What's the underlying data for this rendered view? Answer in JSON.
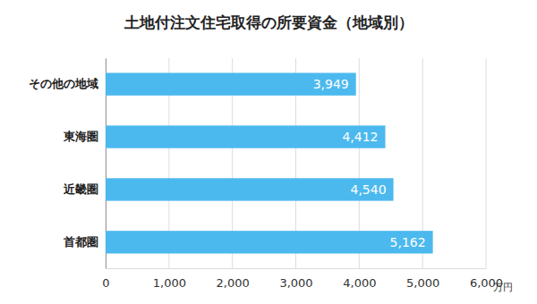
{
  "chart_data": {
    "type": "bar",
    "title": "土地付注文住宅取得の所要資金（地域別）",
    "orientation": "horizontal",
    "categories": [
      "その他の地域",
      "東海圏",
      "近畿圏",
      "首都圏"
    ],
    "values": [
      3949,
      4412,
      4540,
      5162
    ],
    "value_labels": [
      "3,949",
      "4,412",
      "4,540",
      "5,162"
    ],
    "data_labels": true,
    "color": "#4cb9ee",
    "x_label": "万円",
    "xlim": [
      0,
      6000
    ],
    "xticks": [
      0,
      {
        "value": 1000,
        "label": "1,000"
      },
      {
        "value": 2000,
        "label": "2,000"
      },
      {
        "value": 3000,
        "label": "3,000"
      },
      {
        "value": 4000,
        "label": "4,000"
      },
      {
        "value": 5000,
        "label": "5,000"
      },
      {
        "value": 6000,
        "label": "6,000"
      }
    ],
    "grid": true
  }
}
